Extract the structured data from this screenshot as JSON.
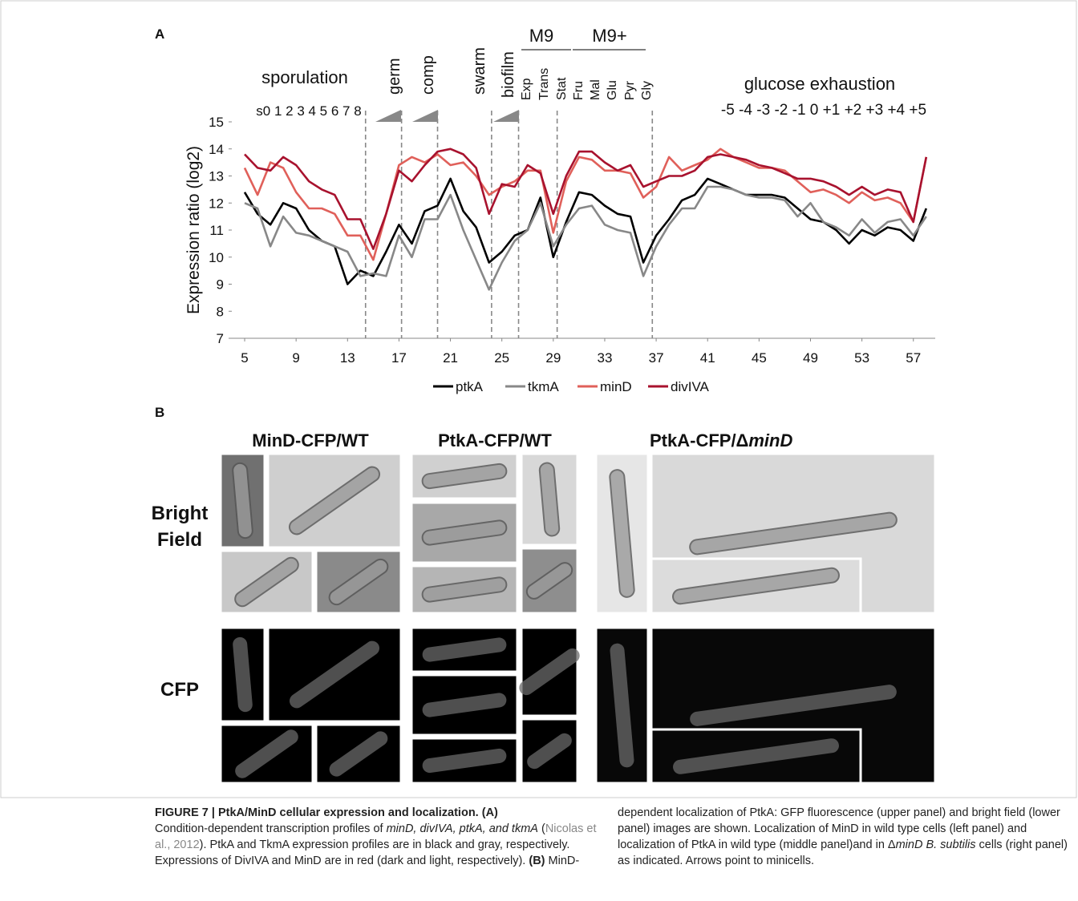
{
  "chart_data": {
    "type": "line",
    "panel": "A",
    "ylabel": "Expression ratio (log2)",
    "x": [
      5,
      6,
      7,
      8,
      9,
      10,
      11,
      12,
      13,
      14,
      15,
      16,
      17,
      18,
      19,
      20,
      21,
      22,
      23,
      24,
      25,
      26,
      27,
      28,
      29,
      30,
      31,
      32,
      33,
      34,
      35,
      36,
      37,
      38,
      39,
      40,
      41,
      42,
      43,
      44,
      45,
      46,
      47,
      48,
      49,
      50,
      51,
      52,
      53,
      54,
      55,
      56,
      57,
      58
    ],
    "xlim": [
      4,
      58.7
    ],
    "xticks": [
      5,
      9,
      13,
      17,
      21,
      25,
      29,
      33,
      37,
      41,
      45,
      49,
      53,
      57
    ],
    "ylim": [
      7,
      15
    ],
    "yticks": [
      7,
      8,
      9,
      10,
      11,
      12,
      13,
      14,
      15
    ],
    "dividers": [
      14.4,
      17.2,
      20.0,
      24.2,
      26.3,
      29.3,
      36.7
    ],
    "annotations": [
      "sporulation",
      "s0 1 2 3 4 5 6 7 8",
      "germ",
      "comp",
      "swarm",
      "biofilm",
      "M9",
      "M9+",
      "Exp",
      "Trans",
      "Stat",
      "Fru",
      "Mal",
      "Glu",
      "Pyr",
      "Gly",
      "glucose exhaustion",
      "-5 -4 -3 -2 -1 0 +1 +2 +3 +4 +5"
    ],
    "series": [
      {
        "name": "ptkA",
        "color": "#000000",
        "values": [
          12.4,
          11.6,
          11.2,
          12.0,
          11.8,
          11.0,
          10.6,
          10.4,
          9.0,
          9.5,
          9.3,
          10.2,
          11.2,
          10.5,
          11.7,
          11.9,
          12.9,
          11.7,
          11.1,
          9.8,
          10.2,
          10.8,
          11.0,
          12.2,
          10.0,
          11.3,
          12.4,
          12.3,
          11.9,
          11.6,
          11.5,
          9.8,
          10.8,
          11.4,
          12.1,
          12.3,
          12.9,
          12.7,
          12.5,
          12.3,
          12.3,
          12.3,
          12.2,
          11.8,
          11.4,
          11.3,
          11.0,
          10.5,
          11.0,
          10.8,
          11.1,
          11.0,
          10.6,
          11.8
        ]
      },
      {
        "name": "tkmA",
        "color": "#888888",
        "values": [
          12.0,
          11.8,
          10.4,
          11.5,
          10.9,
          10.8,
          10.6,
          10.4,
          10.2,
          9.3,
          9.4,
          9.3,
          10.8,
          10.0,
          11.4,
          11.4,
          12.3,
          11.0,
          9.9,
          8.8,
          9.8,
          10.6,
          11.0,
          12.0,
          10.4,
          11.2,
          11.8,
          11.9,
          11.2,
          11.0,
          10.9,
          9.3,
          10.4,
          11.2,
          11.8,
          11.8,
          12.6,
          12.6,
          12.5,
          12.3,
          12.2,
          12.2,
          12.1,
          11.5,
          12.0,
          11.3,
          11.1,
          10.8,
          11.4,
          10.9,
          11.3,
          11.4,
          10.8,
          11.5
        ]
      },
      {
        "name": "minD",
        "color": "#e0605a",
        "values": [
          13.3,
          12.3,
          13.5,
          13.3,
          12.4,
          11.8,
          11.8,
          11.6,
          10.8,
          10.8,
          9.9,
          11.6,
          13.4,
          13.7,
          13.5,
          13.8,
          13.4,
          13.5,
          13.0,
          12.3,
          12.6,
          12.8,
          13.2,
          13.2,
          10.9,
          12.8,
          13.7,
          13.6,
          13.2,
          13.2,
          13.1,
          12.2,
          12.6,
          13.7,
          13.2,
          13.4,
          13.6,
          14.0,
          13.7,
          13.5,
          13.3,
          13.3,
          13.2,
          12.8,
          12.4,
          12.5,
          12.3,
          12.0,
          12.4,
          12.1,
          12.2,
          12.0,
          11.3,
          13.7
        ]
      },
      {
        "name": "divIVA",
        "color": "#a8122e",
        "values": [
          13.8,
          13.3,
          13.2,
          13.7,
          13.4,
          12.8,
          12.5,
          12.3,
          11.4,
          11.4,
          10.3,
          11.6,
          13.2,
          12.8,
          13.4,
          13.9,
          14.0,
          13.8,
          13.3,
          11.6,
          12.7,
          12.6,
          13.4,
          13.1,
          11.6,
          13.0,
          13.9,
          13.9,
          13.5,
          13.2,
          13.4,
          12.6,
          12.8,
          13.0,
          13.0,
          13.2,
          13.7,
          13.8,
          13.7,
          13.6,
          13.4,
          13.3,
          13.1,
          12.9,
          12.9,
          12.8,
          12.6,
          12.3,
          12.6,
          12.3,
          12.5,
          12.4,
          11.3,
          13.7
        ]
      }
    ]
  },
  "panel_b": {
    "label": "B",
    "columns": [
      "MinD-CFP/WT",
      "PtkA-CFP/WT",
      "PtkA-CFP/Δ",
      "minD"
    ],
    "rows": [
      "Bright",
      "Field",
      "CFP"
    ]
  },
  "caption": {
    "runs": [
      "FIGURE 7 | PtkA/MinD cellular expression and localization. (A)",
      " Condition-dependent transcription profiles of ",
      "minD, divIVA, ptkA, and tkmA",
      " (",
      "Nicolas et al., 2012",
      "). PtkA and TkmA expression profiles are in black and gray, respectively. Expressions of DivIVA and MinD are in red (dark and light, respectively). ",
      "(B)",
      " MinD-dependent localization of PtkA: GFP fluorescence (upper panel) and bright field (lower panel) images are shown. Localization of MinD in wild type cells (left panel) and localization of PtkA in wild type (middle panel)and in Δ",
      "minD B. subtilis",
      " cells (right panel) as indicated. Arrows point to minicells."
    ]
  }
}
